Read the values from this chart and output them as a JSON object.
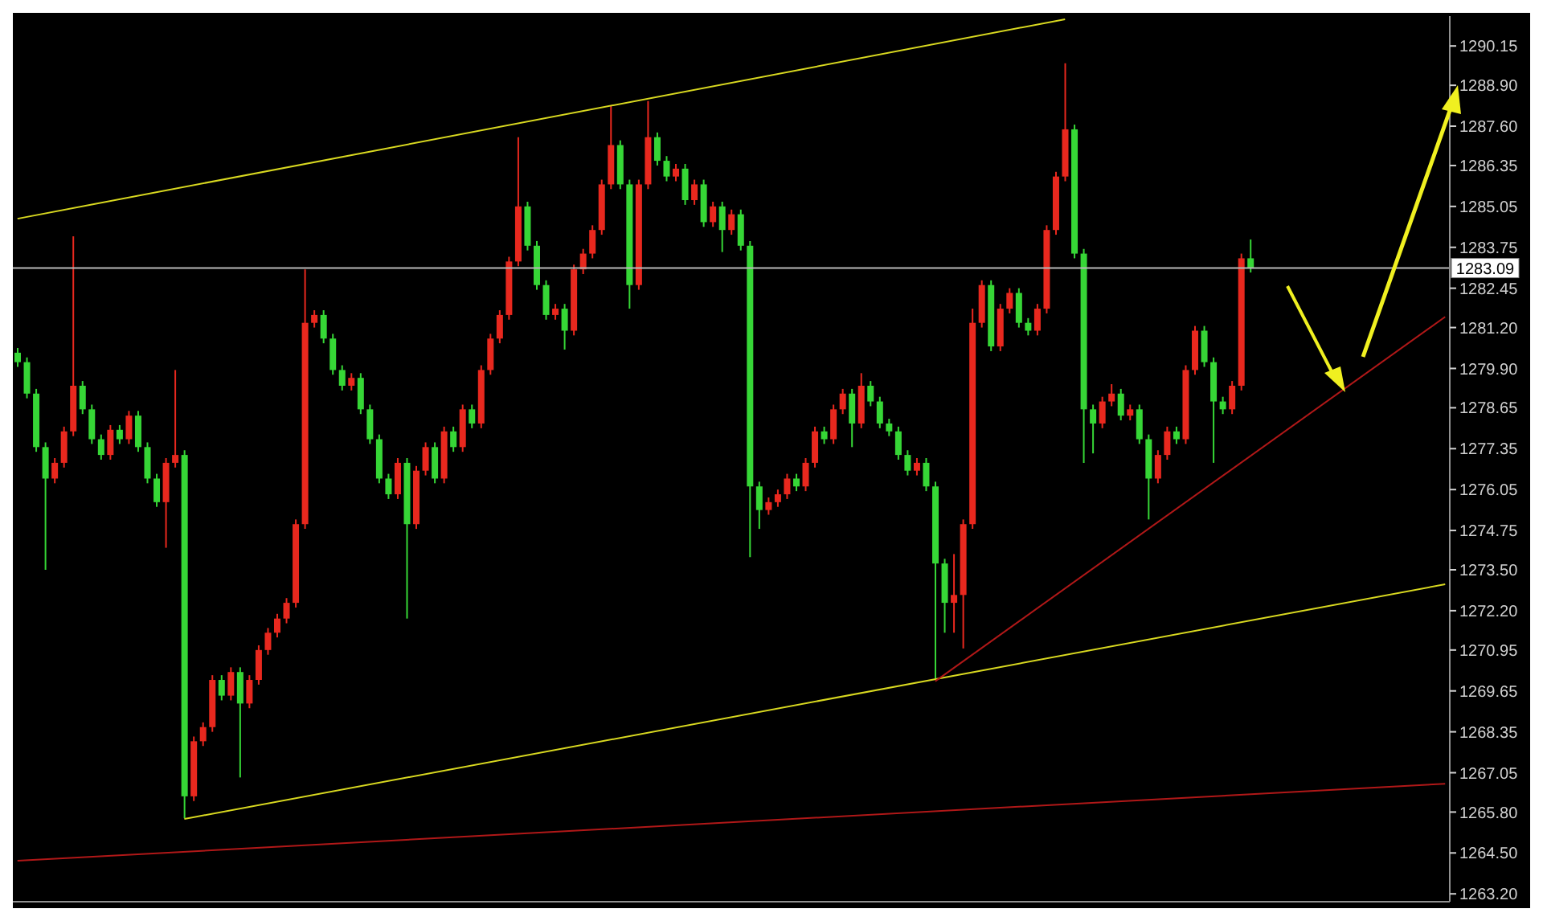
{
  "chart_data": {
    "type": "candlestick",
    "categories": [
      null,
      null,
      null,
      null,
      null,
      null,
      null,
      null,
      null,
      null,
      null,
      null,
      null,
      null,
      null,
      null,
      null,
      null,
      null,
      null,
      null,
      null,
      null,
      null,
      null,
      null,
      null,
      null,
      null,
      null,
      null,
      null,
      null,
      null,
      null,
      null,
      null,
      null,
      null,
      null,
      null,
      null,
      null,
      null,
      null,
      null,
      null,
      null,
      null,
      null,
      null,
      null,
      null,
      null,
      null,
      null,
      null,
      null,
      null,
      null,
      null,
      null,
      null,
      null,
      null,
      null,
      null,
      null,
      null,
      null,
      null,
      null,
      null,
      null,
      null,
      null,
      null,
      null,
      null,
      null,
      null,
      null,
      null,
      null,
      null,
      null,
      null,
      null,
      null,
      null,
      null,
      null,
      null,
      null,
      null,
      null,
      null,
      null,
      null,
      null,
      null,
      null,
      null,
      null,
      null,
      null,
      null,
      null,
      null,
      null,
      null,
      null,
      null,
      null,
      null,
      null,
      null,
      null,
      null,
      null,
      null,
      null,
      null,
      null,
      null,
      null,
      null,
      null,
      null,
      null,
      null,
      null,
      null,
      null,
      null,
      null,
      null,
      null,
      null,
      null,
      null,
      null,
      null,
      null,
      null,
      null,
      null,
      null,
      null,
      null,
      null,
      null,
      null,
      null,
      null
    ],
    "ohlc": [
      [
        1280.4,
        1280.55,
        1279.95,
        1280.1
      ],
      [
        1280.1,
        1280.25,
        1278.95,
        1279.1
      ],
      [
        1279.1,
        1279.25,
        1277.25,
        1277.4
      ],
      [
        1277.4,
        1277.55,
        1273.5,
        1276.4
      ],
      [
        1276.4,
        1277.05,
        1276.25,
        1276.9
      ],
      [
        1276.9,
        1278.05,
        1276.75,
        1277.9
      ],
      [
        1277.9,
        1284.1,
        1277.75,
        1279.35
      ],
      [
        1279.35,
        1279.5,
        1278.45,
        1278.6
      ],
      [
        1278.6,
        1278.75,
        1277.5,
        1277.65
      ],
      [
        1277.65,
        1277.8,
        1277.0,
        1277.15
      ],
      [
        1277.15,
        1278.1,
        1277.0,
        1277.95
      ],
      [
        1277.95,
        1278.1,
        1277.5,
        1277.65
      ],
      [
        1277.65,
        1278.55,
        1277.5,
        1278.4
      ],
      [
        1278.4,
        1278.55,
        1277.25,
        1277.4
      ],
      [
        1277.4,
        1277.55,
        1276.25,
        1276.4
      ],
      [
        1276.4,
        1276.55,
        1275.5,
        1275.65
      ],
      [
        1275.65,
        1277.05,
        1274.2,
        1276.9
      ],
      [
        1276.9,
        1279.85,
        1276.75,
        1277.15
      ],
      [
        1277.15,
        1277.3,
        1265.6,
        1266.3
      ],
      [
        1266.3,
        1268.2,
        1266.15,
        1268.05
      ],
      [
        1268.05,
        1268.65,
        1267.9,
        1268.5
      ],
      [
        1268.5,
        1270.15,
        1268.35,
        1270.0
      ],
      [
        1270.0,
        1270.15,
        1269.35,
        1269.5
      ],
      [
        1269.5,
        1270.4,
        1269.35,
        1270.25
      ],
      [
        1270.25,
        1270.4,
        1266.9,
        1269.25
      ],
      [
        1269.25,
        1270.15,
        1269.1,
        1270.0
      ],
      [
        1270.0,
        1271.1,
        1269.85,
        1270.95
      ],
      [
        1270.95,
        1271.65,
        1270.8,
        1271.5
      ],
      [
        1271.5,
        1272.1,
        1271.35,
        1271.95
      ],
      [
        1271.95,
        1272.6,
        1271.8,
        1272.45
      ],
      [
        1272.45,
        1275.1,
        1272.3,
        1274.95
      ],
      [
        1274.95,
        1283.05,
        1274.8,
        1281.35
      ],
      [
        1281.35,
        1281.75,
        1281.2,
        1281.6
      ],
      [
        1281.6,
        1281.75,
        1280.7,
        1280.85
      ],
      [
        1280.85,
        1281.0,
        1279.7,
        1279.85
      ],
      [
        1279.85,
        1280.0,
        1279.2,
        1279.35
      ],
      [
        1279.35,
        1279.75,
        1279.2,
        1279.6
      ],
      [
        1279.6,
        1279.75,
        1278.45,
        1278.6
      ],
      [
        1278.6,
        1278.75,
        1277.5,
        1277.65
      ],
      [
        1277.65,
        1277.8,
        1276.25,
        1276.4
      ],
      [
        1276.4,
        1276.55,
        1275.75,
        1275.9
      ],
      [
        1275.9,
        1277.05,
        1275.75,
        1276.9
      ],
      [
        1276.9,
        1277.05,
        1271.95,
        1274.95
      ],
      [
        1274.95,
        1276.8,
        1274.8,
        1276.65
      ],
      [
        1276.65,
        1277.55,
        1276.5,
        1277.4
      ],
      [
        1277.4,
        1277.55,
        1276.25,
        1276.4
      ],
      [
        1276.4,
        1278.05,
        1276.25,
        1277.9
      ],
      [
        1277.9,
        1278.05,
        1277.25,
        1277.4
      ],
      [
        1277.4,
        1278.75,
        1277.25,
        1278.6
      ],
      [
        1278.6,
        1278.75,
        1278.0,
        1278.15
      ],
      [
        1278.15,
        1280.0,
        1278.0,
        1279.85
      ],
      [
        1279.85,
        1281.0,
        1279.7,
        1280.85
      ],
      [
        1280.85,
        1281.75,
        1280.7,
        1281.6
      ],
      [
        1281.6,
        1283.45,
        1281.45,
        1283.3
      ],
      [
        1283.3,
        1287.25,
        1283.15,
        1285.05
      ],
      [
        1285.05,
        1285.2,
        1283.65,
        1283.8
      ],
      [
        1283.8,
        1283.95,
        1282.4,
        1282.55
      ],
      [
        1282.55,
        1282.7,
        1281.45,
        1281.6
      ],
      [
        1281.6,
        1281.95,
        1281.45,
        1281.8
      ],
      [
        1281.8,
        1281.95,
        1280.5,
        1281.1
      ],
      [
        1281.1,
        1283.2,
        1280.95,
        1283.05
      ],
      [
        1283.05,
        1283.7,
        1282.9,
        1283.55
      ],
      [
        1283.55,
        1284.45,
        1283.4,
        1284.3
      ],
      [
        1284.3,
        1285.9,
        1284.15,
        1285.75
      ],
      [
        1285.75,
        1288.25,
        1285.6,
        1287.0
      ],
      [
        1287.0,
        1287.15,
        1285.6,
        1285.75
      ],
      [
        1285.75,
        1285.9,
        1281.8,
        1282.55
      ],
      [
        1282.55,
        1285.9,
        1282.4,
        1285.75
      ],
      [
        1285.75,
        1288.4,
        1285.6,
        1287.25
      ],
      [
        1287.25,
        1287.4,
        1286.35,
        1286.5
      ],
      [
        1286.5,
        1286.65,
        1285.85,
        1286.0
      ],
      [
        1286.0,
        1286.4,
        1285.85,
        1286.25
      ],
      [
        1286.25,
        1286.4,
        1285.1,
        1285.25
      ],
      [
        1285.25,
        1285.9,
        1285.1,
        1285.75
      ],
      [
        1285.75,
        1285.9,
        1284.4,
        1284.55
      ],
      [
        1284.55,
        1285.2,
        1284.4,
        1285.05
      ],
      [
        1285.05,
        1285.2,
        1283.6,
        1284.3
      ],
      [
        1284.3,
        1284.95,
        1284.15,
        1284.8
      ],
      [
        1284.8,
        1284.95,
        1283.65,
        1283.8
      ],
      [
        1283.8,
        1283.95,
        1273.9,
        1276.15
      ],
      [
        1276.15,
        1276.3,
        1274.8,
        1275.4
      ],
      [
        1275.4,
        1275.8,
        1275.25,
        1275.65
      ],
      [
        1275.65,
        1276.05,
        1275.5,
        1275.9
      ],
      [
        1275.9,
        1276.55,
        1275.75,
        1276.4
      ],
      [
        1276.4,
        1276.55,
        1276.0,
        1276.15
      ],
      [
        1276.15,
        1277.05,
        1276.0,
        1276.9
      ],
      [
        1276.9,
        1278.05,
        1276.75,
        1277.9
      ],
      [
        1277.9,
        1278.05,
        1277.5,
        1277.65
      ],
      [
        1277.65,
        1278.75,
        1277.5,
        1278.6
      ],
      [
        1278.6,
        1279.25,
        1278.45,
        1279.1
      ],
      [
        1279.1,
        1279.25,
        1277.4,
        1278.15
      ],
      [
        1278.15,
        1279.75,
        1278.0,
        1279.35
      ],
      [
        1279.35,
        1279.5,
        1278.7,
        1278.85
      ],
      [
        1278.85,
        1279.0,
        1278.0,
        1278.15
      ],
      [
        1278.15,
        1278.3,
        1277.75,
        1277.9
      ],
      [
        1277.9,
        1278.05,
        1277.0,
        1277.15
      ],
      [
        1277.15,
        1277.3,
        1276.5,
        1276.65
      ],
      [
        1276.65,
        1277.05,
        1276.5,
        1276.9
      ],
      [
        1276.9,
        1277.05,
        1276.0,
        1276.15
      ],
      [
        1276.15,
        1276.3,
        1270.0,
        1273.7
      ],
      [
        1273.7,
        1273.85,
        1271.5,
        1272.45
      ],
      [
        1272.45,
        1274.0,
        1271.5,
        1272.7
      ],
      [
        1272.7,
        1275.1,
        1271.0,
        1274.95
      ],
      [
        1274.95,
        1281.8,
        1274.8,
        1281.35
      ],
      [
        1281.35,
        1282.7,
        1281.2,
        1282.55
      ],
      [
        1282.55,
        1282.7,
        1280.45,
        1280.6
      ],
      [
        1280.6,
        1281.95,
        1280.45,
        1281.8
      ],
      [
        1281.8,
        1282.45,
        1281.65,
        1282.3
      ],
      [
        1282.3,
        1282.45,
        1281.2,
        1281.35
      ],
      [
        1281.35,
        1281.5,
        1280.95,
        1281.1
      ],
      [
        1281.1,
        1281.95,
        1280.95,
        1281.8
      ],
      [
        1281.8,
        1284.45,
        1281.65,
        1284.3
      ],
      [
        1284.3,
        1286.15,
        1284.15,
        1286.0
      ],
      [
        1286.0,
        1289.6,
        1285.85,
        1287.5
      ],
      [
        1287.5,
        1287.65,
        1283.4,
        1283.55
      ],
      [
        1283.55,
        1283.7,
        1276.9,
        1278.6
      ],
      [
        1278.6,
        1278.75,
        1277.2,
        1278.15
      ],
      [
        1278.15,
        1279.0,
        1278.0,
        1278.85
      ],
      [
        1278.85,
        1279.4,
        1278.7,
        1279.1
      ],
      [
        1279.1,
        1279.25,
        1278.25,
        1278.4
      ],
      [
        1278.4,
        1278.75,
        1278.25,
        1278.6
      ],
      [
        1278.6,
        1278.75,
        1277.5,
        1277.65
      ],
      [
        1277.65,
        1277.8,
        1275.1,
        1276.4
      ],
      [
        1276.4,
        1277.3,
        1276.25,
        1277.15
      ],
      [
        1277.15,
        1278.05,
        1277.0,
        1277.9
      ],
      [
        1277.9,
        1278.05,
        1277.5,
        1277.65
      ],
      [
        1277.65,
        1280.0,
        1277.5,
        1279.85
      ],
      [
        1279.85,
        1281.25,
        1279.7,
        1281.1
      ],
      [
        1281.1,
        1281.25,
        1279.95,
        1280.1
      ],
      [
        1280.1,
        1280.25,
        1276.9,
        1278.85
      ],
      [
        1278.85,
        1279.0,
        1278.45,
        1278.6
      ],
      [
        1278.6,
        1279.5,
        1278.45,
        1279.35
      ],
      [
        1279.35,
        1283.55,
        1279.2,
        1283.4
      ],
      [
        1283.4,
        1284.0,
        1282.95,
        1283.1
      ],
      null,
      null,
      null,
      null,
      null,
      null,
      null,
      null,
      null,
      null,
      null,
      null,
      null,
      null,
      null,
      null,
      null,
      null,
      null,
      null,
      null
    ],
    "colors": [
      "#36d636",
      "#36d636",
      "#36d636",
      "#36d636",
      "#e8281e",
      "#e8281e",
      "#e8281e",
      "#36d636",
      "#36d636",
      "#36d636",
      "#e8281e",
      "#36d636",
      "#e8281e",
      "#36d636",
      "#36d636",
      "#36d636",
      "#e8281e",
      "#e8281e",
      "#36d636",
      "#e8281e",
      "#e8281e",
      "#e8281e",
      "#36d636",
      "#e8281e",
      "#36d636",
      "#e8281e",
      "#e8281e",
      "#e8281e",
      "#e8281e",
      "#e8281e",
      "#e8281e",
      "#e8281e",
      "#e8281e",
      "#36d636",
      "#36d636",
      "#36d636",
      "#e8281e",
      "#36d636",
      "#36d636",
      "#36d636",
      "#36d636",
      "#e8281e",
      "#36d636",
      "#e8281e",
      "#e8281e",
      "#36d636",
      "#e8281e",
      "#36d636",
      "#e8281e",
      "#36d636",
      "#e8281e",
      "#e8281e",
      "#e8281e",
      "#e8281e",
      "#e8281e",
      "#36d636",
      "#36d636",
      "#36d636",
      "#e8281e",
      "#36d636",
      "#e8281e",
      "#e8281e",
      "#e8281e",
      "#e8281e",
      "#e8281e",
      "#36d636",
      "#36d636",
      "#e8281e",
      "#e8281e",
      "#36d636",
      "#36d636",
      "#e8281e",
      "#36d636",
      "#e8281e",
      "#36d636",
      "#e8281e",
      "#36d636",
      "#e8281e",
      "#36d636",
      "#36d636",
      "#36d636",
      "#e8281e",
      "#e8281e",
      "#e8281e",
      "#36d636",
      "#e8281e",
      "#e8281e",
      "#36d636",
      "#e8281e",
      "#e8281e",
      "#36d636",
      "#e8281e",
      "#36d636",
      "#36d636",
      "#36d636",
      "#36d636",
      "#36d636",
      "#e8281e",
      "#36d636",
      "#36d636",
      "#36d636",
      "#e8281e",
      "#e8281e",
      "#e8281e",
      "#e8281e",
      "#36d636",
      "#e8281e",
      "#e8281e",
      "#36d636",
      "#36d636",
      "#e8281e",
      "#e8281e",
      "#e8281e",
      "#e8281e",
      "#36d636",
      "#36d636",
      "#36d636",
      "#e8281e",
      "#e8281e",
      "#36d636",
      "#e8281e",
      "#36d636",
      "#36d636",
      "#e8281e",
      "#e8281e",
      "#36d636",
      "#e8281e",
      "#e8281e",
      "#36d636",
      "#36d636",
      "#36d636",
      "#e8281e",
      "#e8281e",
      "#36d636",
      null,
      null,
      null,
      null,
      null,
      null,
      null,
      null,
      null,
      null,
      null,
      null,
      null,
      null,
      null,
      null,
      null,
      null,
      null,
      null,
      null
    ],
    "series": [
      {
        "type": "line",
        "values": [
          1284.66,
          null,
          null,
          null,
          null,
          null,
          null,
          null,
          null,
          null,
          null,
          null,
          null,
          null,
          null,
          null,
          null,
          null,
          null,
          null,
          null,
          null,
          null,
          null,
          null,
          null,
          null,
          null,
          null,
          null,
          null,
          null,
          null,
          null,
          null,
          null,
          null,
          null,
          null,
          null,
          null,
          null,
          null,
          null,
          null,
          null,
          null,
          null,
          null,
          null,
          null,
          null,
          null,
          null,
          null,
          null,
          null,
          null,
          null,
          null,
          null,
          null,
          null,
          null,
          null,
          null,
          null,
          null,
          null,
          null,
          null,
          null,
          null,
          null,
          null,
          null,
          null,
          null,
          null,
          null,
          null,
          null,
          null,
          null,
          null,
          null,
          null,
          null,
          null,
          null,
          null,
          null,
          null,
          null,
          null,
          null,
          null,
          null,
          null,
          null,
          null,
          null,
          null,
          null,
          null,
          null,
          null,
          null,
          null,
          null,
          null,
          null,
          null,
          1291.0,
          null,
          null,
          null,
          null,
          null,
          null,
          null,
          null,
          null,
          null,
          null,
          null,
          null,
          null,
          null,
          null,
          null,
          null,
          null,
          null,
          null,
          null,
          null,
          null,
          null,
          null,
          null,
          null,
          null,
          null,
          null,
          null,
          null,
          null,
          null,
          null,
          null,
          null,
          null,
          null,
          null
        ],
        "color": "#d8d820"
      },
      {
        "type": "line",
        "values": [
          null,
          null,
          null,
          null,
          null,
          null,
          null,
          null,
          null,
          null,
          null,
          null,
          null,
          null,
          null,
          null,
          null,
          null,
          1265.58,
          null,
          null,
          null,
          null,
          null,
          null,
          null,
          null,
          null,
          null,
          null,
          null,
          null,
          null,
          null,
          null,
          null,
          null,
          null,
          null,
          null,
          null,
          null,
          null,
          null,
          null,
          null,
          null,
          null,
          null,
          null,
          null,
          null,
          null,
          null,
          null,
          null,
          null,
          null,
          null,
          null,
          null,
          null,
          null,
          null,
          null,
          null,
          null,
          null,
          null,
          null,
          null,
          null,
          null,
          null,
          null,
          null,
          null,
          null,
          null,
          null,
          null,
          null,
          null,
          null,
          null,
          null,
          null,
          null,
          null,
          null,
          null,
          null,
          null,
          null,
          null,
          null,
          null,
          null,
          null,
          null,
          null,
          null,
          null,
          null,
          null,
          null,
          null,
          null,
          null,
          null,
          null,
          null,
          null,
          null,
          null,
          null,
          null,
          null,
          null,
          null,
          null,
          null,
          null,
          null,
          null,
          null,
          null,
          null,
          null,
          null,
          null,
          null,
          null,
          null,
          null,
          null,
          null,
          null,
          null,
          null,
          null,
          null,
          null,
          null,
          null,
          null,
          null,
          null,
          null,
          null,
          null,
          null,
          null,
          null,
          1273.04
        ],
        "color": "#d8d820"
      },
      {
        "type": "line",
        "values": [
          null,
          null,
          null,
          null,
          null,
          null,
          null,
          null,
          null,
          null,
          null,
          null,
          null,
          null,
          null,
          null,
          null,
          null,
          null,
          null,
          null,
          null,
          null,
          null,
          null,
          null,
          null,
          null,
          null,
          null,
          null,
          null,
          null,
          null,
          null,
          null,
          null,
          null,
          null,
          null,
          null,
          null,
          null,
          null,
          null,
          null,
          null,
          null,
          null,
          null,
          null,
          null,
          null,
          null,
          null,
          null,
          null,
          null,
          null,
          null,
          null,
          null,
          null,
          null,
          null,
          null,
          null,
          null,
          null,
          null,
          null,
          null,
          null,
          null,
          null,
          null,
          null,
          null,
          null,
          null,
          null,
          null,
          null,
          null,
          null,
          null,
          null,
          null,
          null,
          null,
          null,
          null,
          null,
          null,
          null,
          null,
          null,
          null,
          null,
          1269.96,
          null,
          null,
          null,
          null,
          null,
          null,
          null,
          null,
          null,
          null,
          null,
          null,
          null,
          null,
          null,
          null,
          null,
          null,
          null,
          null,
          null,
          null,
          null,
          null,
          null,
          null,
          null,
          null,
          null,
          null,
          null,
          null,
          null,
          null,
          null,
          null,
          null,
          null,
          null,
          null,
          null,
          null,
          null,
          null,
          null,
          null,
          null,
          null,
          null,
          null,
          null,
          null,
          null,
          null,
          1281.54
        ],
        "color": "#b01818"
      },
      {
        "type": "line",
        "values": [
          1264.25,
          null,
          null,
          null,
          null,
          null,
          null,
          null,
          null,
          null,
          null,
          null,
          null,
          null,
          null,
          null,
          null,
          null,
          null,
          null,
          null,
          null,
          null,
          null,
          null,
          null,
          null,
          null,
          null,
          null,
          null,
          null,
          null,
          null,
          null,
          null,
          null,
          null,
          null,
          null,
          null,
          null,
          null,
          null,
          null,
          null,
          null,
          null,
          null,
          null,
          null,
          null,
          null,
          null,
          null,
          null,
          null,
          null,
          null,
          null,
          null,
          null,
          null,
          null,
          null,
          null,
          null,
          null,
          null,
          null,
          null,
          null,
          null,
          null,
          null,
          null,
          null,
          null,
          null,
          null,
          null,
          null,
          null,
          null,
          null,
          null,
          null,
          null,
          null,
          null,
          null,
          null,
          null,
          null,
          null,
          null,
          null,
          null,
          null,
          null,
          null,
          null,
          null,
          null,
          null,
          null,
          null,
          null,
          null,
          null,
          null,
          null,
          null,
          null,
          null,
          null,
          null,
          null,
          null,
          null,
          null,
          null,
          null,
          null,
          null,
          null,
          null,
          null,
          null,
          null,
          null,
          null,
          null,
          null,
          null,
          null,
          null,
          null,
          null,
          null,
          null,
          null,
          null,
          null,
          null,
          null,
          null,
          null,
          null,
          null,
          null,
          null,
          null,
          null,
          1266.7
        ],
        "color": "#b01818"
      }
    ],
    "ref_lines": [
      {
        "axis": "y",
        "value": 1283.09,
        "label": "1283.09",
        "color": "#b8b8b8"
      }
    ],
    "ylim": [
      1262.95,
      1291.1
    ],
    "yticks": [
      {
        "value": 1290.15,
        "label": "1290.15"
      },
      {
        "value": 1288.9,
        "label": "1288.90"
      },
      {
        "value": 1287.6,
        "label": "1287.60"
      },
      {
        "value": 1286.35,
        "label": "1286.35"
      },
      {
        "value": 1285.05,
        "label": "1285.05"
      },
      {
        "value": 1283.75,
        "label": "1283.75"
      },
      {
        "value": 1282.45,
        "label": "1282.45"
      },
      {
        "value": 1281.2,
        "label": "1281.20"
      },
      {
        "value": 1279.9,
        "label": "1279.90"
      },
      {
        "value": 1278.65,
        "label": "1278.65"
      },
      {
        "value": 1277.35,
        "label": "1277.35"
      },
      {
        "value": 1276.05,
        "label": "1276.05"
      },
      {
        "value": 1274.75,
        "label": "1274.75"
      },
      {
        "value": 1273.5,
        "label": "1273.50"
      },
      {
        "value": 1272.2,
        "label": "1272.20"
      },
      {
        "value": 1270.95,
        "label": "1270.95"
      },
      {
        "value": 1269.65,
        "label": "1269.65"
      },
      {
        "value": 1268.35,
        "label": "1268.35"
      },
      {
        "value": 1267.05,
        "label": "1267.05"
      },
      {
        "value": 1265.8,
        "label": "1265.80"
      },
      {
        "value": 1264.5,
        "label": "1264.50"
      },
      {
        "value": 1263.2,
        "label": "1263.20"
      }
    ],
    "tick_labels": "y"
  }
}
